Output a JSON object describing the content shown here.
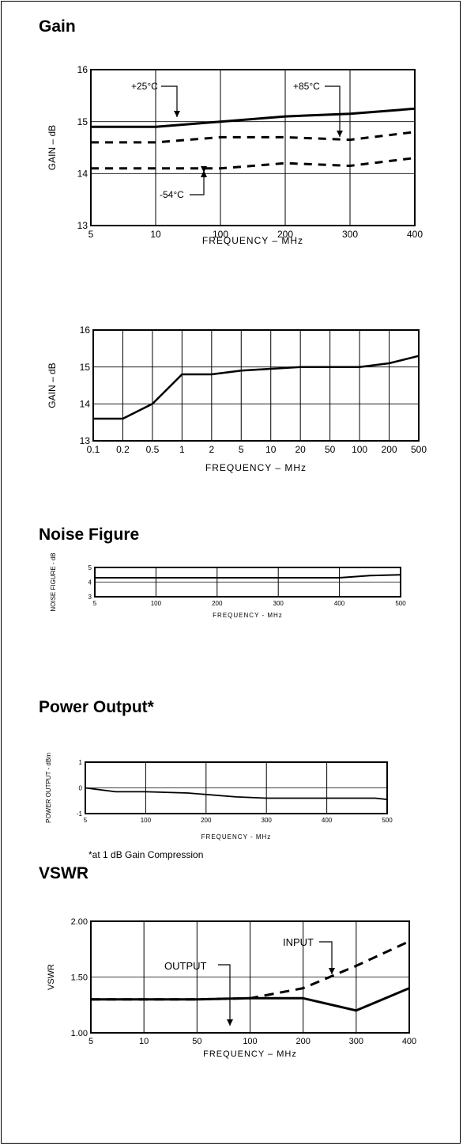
{
  "sections": {
    "gain": "Gain",
    "noise": "Noise Figure",
    "power": "Power Output*",
    "vswr": "VSWR"
  },
  "footnote": "*at 1 dB Gain Compression",
  "chart_data": [
    {
      "type": "line",
      "xlabel": "FREQUENCY – MHz",
      "ylabel": "GAIN – dB",
      "x_ticks": [
        "5",
        "10",
        "100",
        "200",
        "300",
        "400"
      ],
      "ylim": [
        13,
        16
      ],
      "y_ticks": [
        "13",
        "14",
        "15",
        "16"
      ],
      "series": [
        {
          "name": "+25°C",
          "style": "solid",
          "x": [
            "5",
            "10",
            "100",
            "200",
            "300",
            "400"
          ],
          "values": [
            14.9,
            14.9,
            15.0,
            15.1,
            15.15,
            15.25
          ]
        },
        {
          "name": "+85°C",
          "style": "dashed",
          "x": [
            "5",
            "10",
            "100",
            "200",
            "300",
            "400"
          ],
          "values": [
            14.6,
            14.6,
            14.7,
            14.7,
            14.65,
            14.8
          ]
        },
        {
          "name": "-54°C",
          "style": "dashed",
          "x": [
            "5",
            "10",
            "100",
            "200",
            "300",
            "400"
          ],
          "values": [
            14.1,
            14.1,
            14.1,
            14.2,
            14.15,
            14.3
          ]
        }
      ],
      "annotations": [
        "+25°C",
        "+85°C",
        "-54°C"
      ],
      "grid": true
    },
    {
      "type": "line",
      "xlabel": "FREQUENCY – MHz",
      "ylabel": "GAIN – dB",
      "x_ticks": [
        "0.1",
        "0.2",
        "0.5",
        "1",
        "2",
        "5",
        "10",
        "20",
        "50",
        "100",
        "200",
        "500"
      ],
      "ylim": [
        13,
        16
      ],
      "y_ticks": [
        "13",
        "14",
        "15",
        "16"
      ],
      "series": [
        {
          "style": "solid",
          "x": [
            "0.1",
            "0.2",
            "0.5",
            "1",
            "2",
            "5",
            "10",
            "20",
            "50",
            "100",
            "200",
            "500"
          ],
          "values": [
            13.6,
            13.6,
            14.0,
            14.8,
            14.8,
            14.9,
            14.95,
            15.0,
            15.0,
            15.0,
            15.1,
            15.3
          ]
        }
      ],
      "grid": true
    },
    {
      "type": "line",
      "xlabel": "FREQUENCY - MHz",
      "ylabel": "NOISE FIGURE - dB",
      "x_ticks": [
        "5",
        "100",
        "200",
        "300",
        "400",
        "500"
      ],
      "xlim": [
        0,
        500
      ],
      "ylim": [
        3,
        5
      ],
      "y_ticks": [
        "3",
        "4",
        "5"
      ],
      "series": [
        {
          "style": "solid",
          "x": [
            0,
            100,
            200,
            300,
            400,
            450,
            500
          ],
          "values": [
            4.3,
            4.3,
            4.3,
            4.3,
            4.3,
            4.45,
            4.5
          ]
        }
      ],
      "grid": true
    },
    {
      "type": "line",
      "xlabel": "FREQUENCY - MHz",
      "ylabel": "POWER OUTPUT - dBm",
      "x_ticks": [
        "5",
        "100",
        "200",
        "300",
        "400",
        "500"
      ],
      "xlim": [
        0,
        500
      ],
      "ylim": [
        -1,
        1
      ],
      "y_ticks": [
        "-1",
        "0",
        "1"
      ],
      "series": [
        {
          "style": "solid",
          "x": [
            0,
            50,
            100,
            170,
            250,
            300,
            400,
            480,
            500
          ],
          "values": [
            0,
            -0.15,
            -0.15,
            -0.2,
            -0.35,
            -0.4,
            -0.4,
            -0.4,
            -0.45
          ]
        }
      ],
      "grid": true
    },
    {
      "type": "line",
      "xlabel": "FREQUENCY – MHz",
      "ylabel": "VSWR",
      "x_ticks": [
        "5",
        "10",
        "50",
        "100",
        "200",
        "300",
        "400"
      ],
      "ylim": [
        1.0,
        2.0
      ],
      "y_ticks": [
        "1.00",
        "1.50",
        "2.00"
      ],
      "series": [
        {
          "name": "OUTPUT",
          "style": "solid",
          "x": [
            "5",
            "10",
            "50",
            "100",
            "200",
            "300",
            "400"
          ],
          "values": [
            1.3,
            1.3,
            1.3,
            1.31,
            1.31,
            1.2,
            1.4
          ]
        },
        {
          "name": "INPUT",
          "style": "dashed",
          "x": [
            "5",
            "10",
            "50",
            "100",
            "200",
            "300",
            "400"
          ],
          "values": [
            1.3,
            1.3,
            1.3,
            1.31,
            1.4,
            1.6,
            1.82
          ]
        }
      ],
      "annotations": [
        "OUTPUT",
        "INPUT"
      ],
      "grid": true
    }
  ]
}
